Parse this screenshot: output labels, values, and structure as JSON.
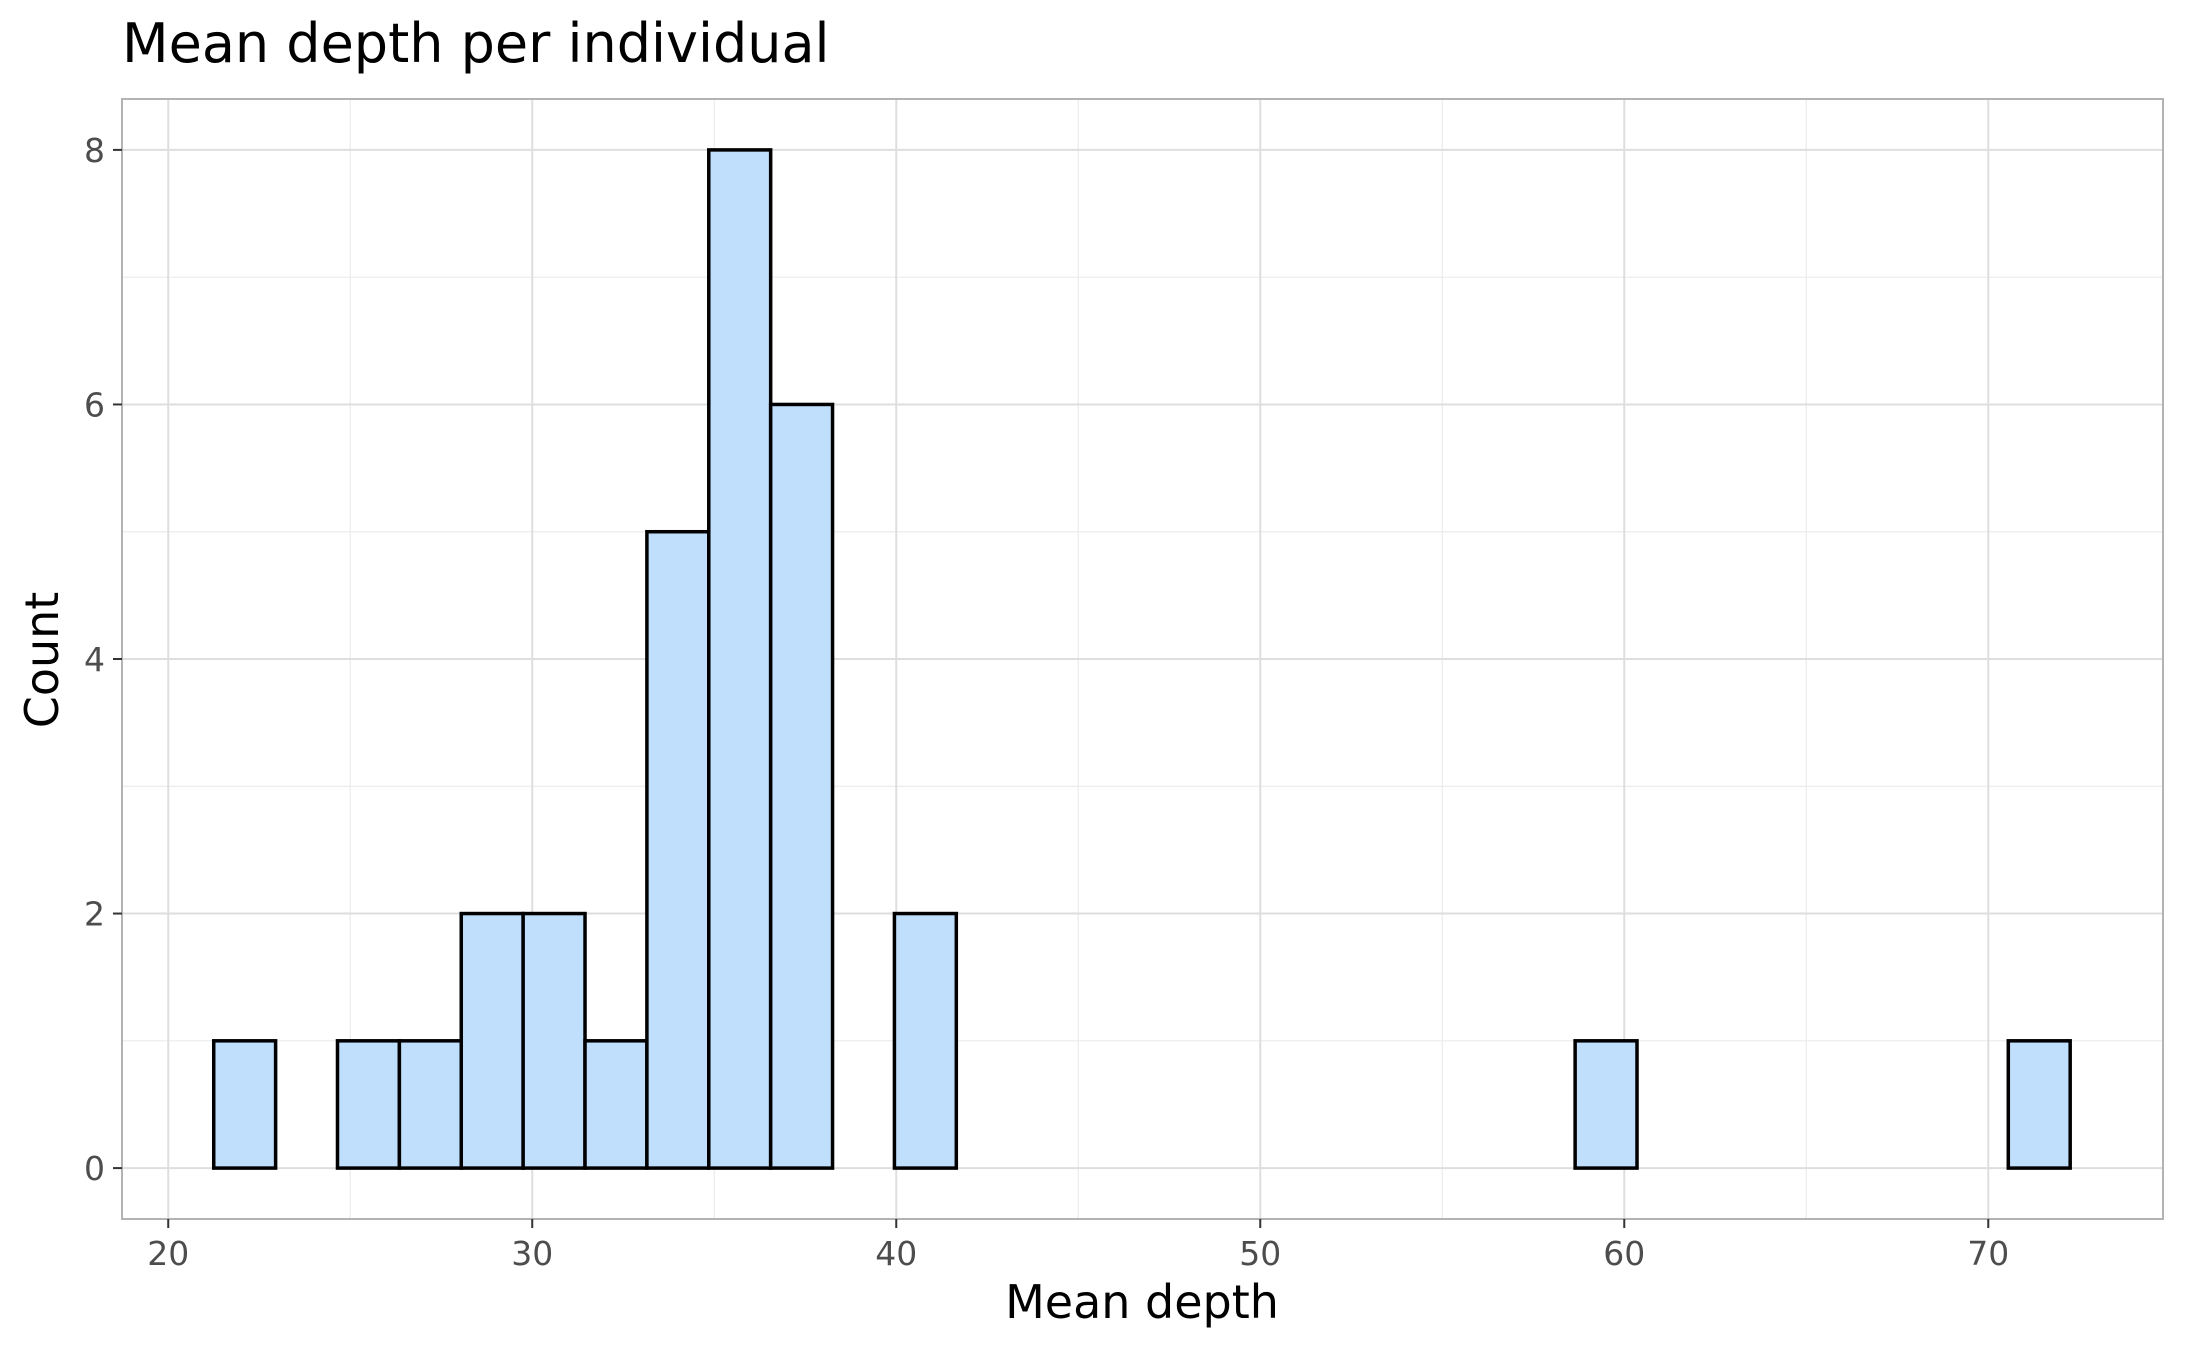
{
  "chart_data": {
    "type": "bar",
    "title": "Mean depth per individual",
    "xlabel": "Mean depth",
    "ylabel": "Count",
    "xlim": [
      18.73,
      74.8
    ],
    "ylim": [
      -0.4,
      8.4
    ],
    "x_ticks": [
      20,
      30,
      40,
      50,
      60,
      70
    ],
    "y_ticks": [
      0,
      2,
      4,
      6,
      8
    ],
    "x_tick_labels": [
      "20",
      "30",
      "40",
      "50",
      "60",
      "70"
    ],
    "y_tick_labels": [
      "0",
      "2",
      "4",
      "6",
      "8"
    ],
    "grid": true,
    "fill_color": "#bfdffc",
    "edge_color": "#000000",
    "bins": [
      {
        "x0": 21.25,
        "x1": 22.95,
        "count": 1
      },
      {
        "x0": 22.95,
        "x1": 24.65,
        "count": 0
      },
      {
        "x0": 24.65,
        "x1": 26.35,
        "count": 1
      },
      {
        "x0": 26.35,
        "x1": 28.05,
        "count": 1
      },
      {
        "x0": 28.05,
        "x1": 29.75,
        "count": 2
      },
      {
        "x0": 29.75,
        "x1": 31.45,
        "count": 2
      },
      {
        "x0": 31.45,
        "x1": 33.15,
        "count": 1
      },
      {
        "x0": 33.15,
        "x1": 34.85,
        "count": 5
      },
      {
        "x0": 34.85,
        "x1": 36.55,
        "count": 8
      },
      {
        "x0": 36.55,
        "x1": 38.25,
        "count": 6
      },
      {
        "x0": 38.25,
        "x1": 39.95,
        "count": 0
      },
      {
        "x0": 39.95,
        "x1": 41.65,
        "count": 2
      },
      {
        "x0": 41.65,
        "x1": 43.35,
        "count": 0
      },
      {
        "x0": 43.35,
        "x1": 45.05,
        "count": 0
      },
      {
        "x0": 45.05,
        "x1": 46.75,
        "count": 0
      },
      {
        "x0": 46.75,
        "x1": 48.45,
        "count": 0
      },
      {
        "x0": 48.45,
        "x1": 50.15,
        "count": 0
      },
      {
        "x0": 50.15,
        "x1": 51.85,
        "count": 0
      },
      {
        "x0": 51.85,
        "x1": 53.55,
        "count": 0
      },
      {
        "x0": 53.55,
        "x1": 55.25,
        "count": 0
      },
      {
        "x0": 55.25,
        "x1": 56.95,
        "count": 0
      },
      {
        "x0": 56.95,
        "x1": 58.65,
        "count": 0
      },
      {
        "x0": 58.65,
        "x1": 60.35,
        "count": 1
      },
      {
        "x0": 60.35,
        "x1": 62.05,
        "count": 0
      },
      {
        "x0": 62.05,
        "x1": 63.75,
        "count": 0
      },
      {
        "x0": 63.75,
        "x1": 65.45,
        "count": 0
      },
      {
        "x0": 65.45,
        "x1": 67.15,
        "count": 0
      },
      {
        "x0": 67.15,
        "x1": 68.85,
        "count": 0
      },
      {
        "x0": 68.85,
        "x1": 70.55,
        "count": 0
      },
      {
        "x0": 70.55,
        "x1": 72.25,
        "count": 1
      }
    ]
  }
}
